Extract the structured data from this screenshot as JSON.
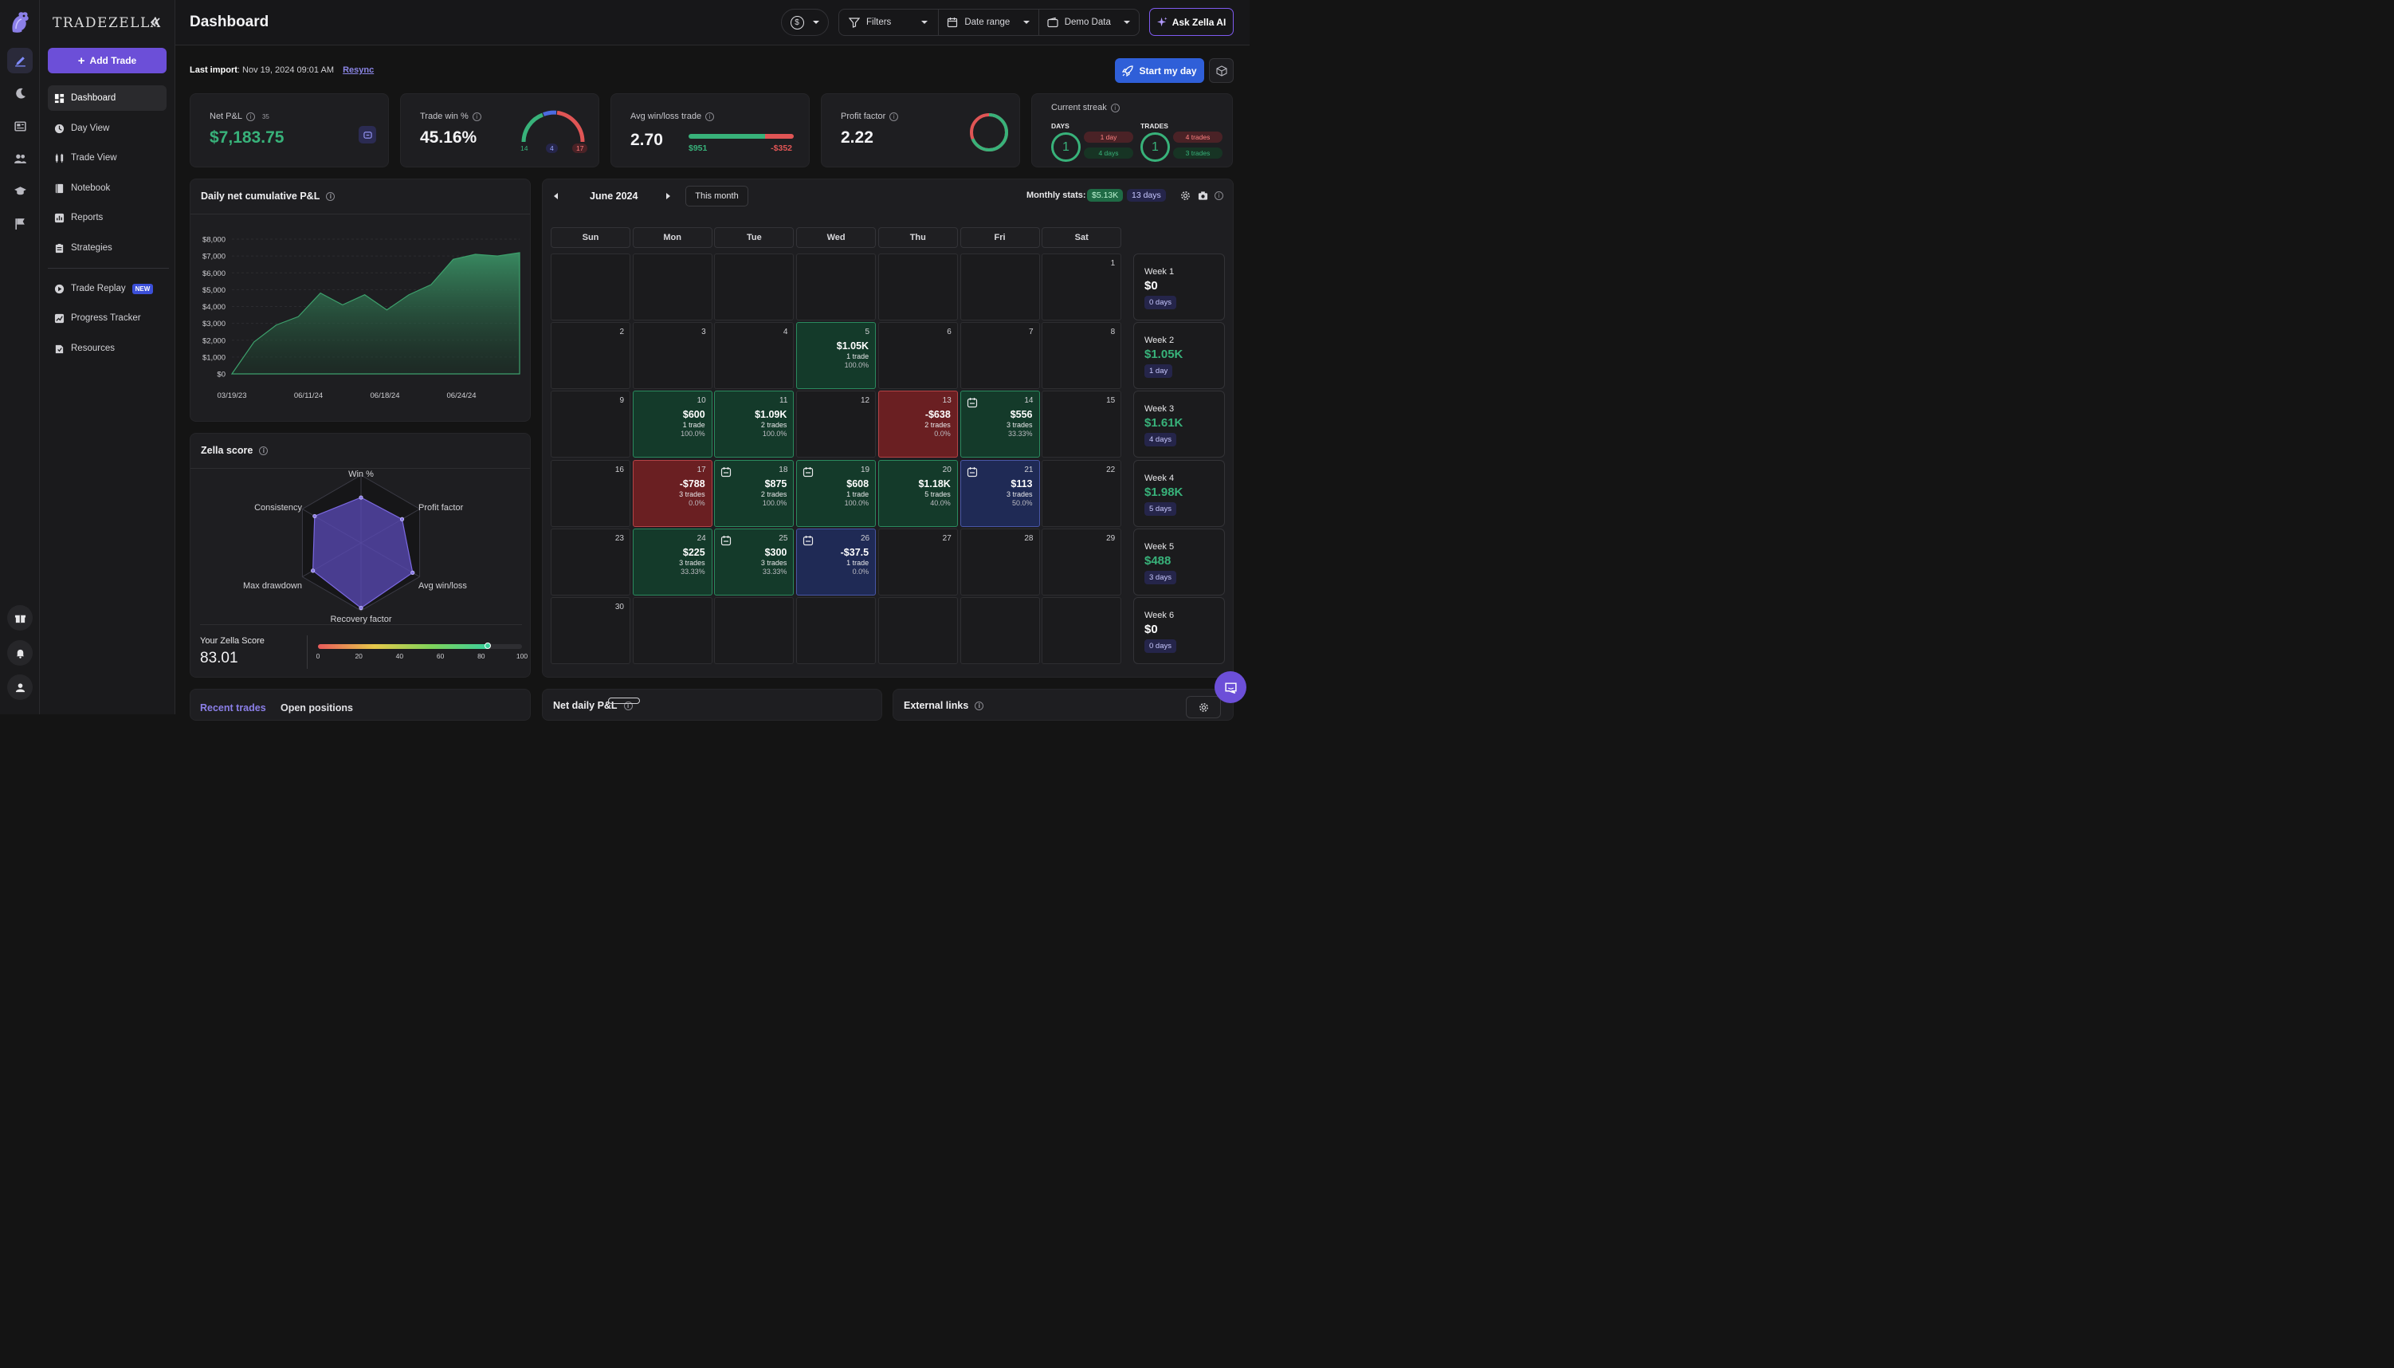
{
  "brand": {
    "name": "TRADEZELLA"
  },
  "sidebar": {
    "add_trade_label": "Add Trade",
    "items": [
      {
        "label": "Dashboard",
        "icon": "dashboard-icon"
      },
      {
        "label": "Day View",
        "icon": "day-view-icon"
      },
      {
        "label": "Trade View",
        "icon": "trade-view-icon"
      },
      {
        "label": "Notebook",
        "icon": "notebook-icon"
      },
      {
        "label": "Reports",
        "icon": "reports-icon"
      },
      {
        "label": "Strategies",
        "icon": "strategies-icon"
      },
      {
        "label": "Trade Replay",
        "icon": "play-icon",
        "badge": "NEW"
      },
      {
        "label": "Progress Tracker",
        "icon": "progress-icon"
      },
      {
        "label": "Resources",
        "icon": "resources-icon"
      }
    ]
  },
  "header": {
    "title": "Dashboard",
    "currency_symbol": "$",
    "filters_label": "Filters",
    "date_range_label": "Date range",
    "account_label": "Demo Data",
    "ask_ai_label": "Ask Zella AI"
  },
  "subheader": {
    "last_import_label": "Last import",
    "last_import_value": ": Nov 19, 2024 09:01 AM",
    "resync_label": "Resync",
    "start_day_label": "Start my day"
  },
  "stats": {
    "net_pnl": {
      "label": "Net P&L",
      "count": "35",
      "value": "$7,183.75"
    },
    "trade_win": {
      "label": "Trade win %",
      "value": "45.16%",
      "wins": "14",
      "breakeven": "4",
      "losses": "17"
    },
    "avg_win_loss": {
      "label": "Avg win/loss trade",
      "value": "2.70",
      "avg_win": "$951",
      "avg_loss": "-$352"
    },
    "profit_factor": {
      "label": "Profit factor",
      "value": "2.22"
    },
    "streak": {
      "label": "Current streak",
      "days_label": "DAYS",
      "days_value": "1",
      "days_loss": "1 day",
      "days_win": "4 days",
      "trades_label": "TRADES",
      "trades_value": "1",
      "trades_loss": "4 trades",
      "trades_win": "3 trades"
    }
  },
  "cum_pnl": {
    "title": "Daily net cumulative P&L",
    "y_ticks": [
      "$8,000",
      "$7,000",
      "$6,000",
      "$5,000",
      "$4,000",
      "$3,000",
      "$2,000",
      "$1,000",
      "$0"
    ],
    "x_ticks": [
      "03/19/23",
      "06/11/24",
      "06/18/24",
      "06/24/24"
    ]
  },
  "chart_data": {
    "type": "area",
    "ylim": [
      0,
      8000
    ],
    "values": [
      0,
      1900,
      2900,
      3400,
      4800,
      4100,
      4700,
      3800,
      4700,
      5300,
      6800,
      7100,
      7000,
      7200
    ],
    "color": "#3a8f64"
  },
  "zella": {
    "title": "Zella score",
    "axes": [
      "Win %",
      "Profit factor",
      "Avg win/loss",
      "Recovery factor",
      "Max drawdown",
      "Consistency"
    ],
    "score_label": "Your Zella Score",
    "score_value": "83.01",
    "scale_ticks": [
      "0",
      "20",
      "40",
      "60",
      "80",
      "100"
    ],
    "score_pct": 83.01
  },
  "calendar": {
    "month": "June 2024",
    "this_month_label": "This month",
    "monthly_stats_label": "Monthly stats:",
    "monthly_pnl": "$5.13K",
    "monthly_days": "13 days",
    "weekdays": [
      "Sun",
      "Mon",
      "Tue",
      "Wed",
      "Thu",
      "Fri",
      "Sat"
    ],
    "days": [
      {
        "d": "1",
        "row": 0,
        "col": 6
      },
      {
        "d": "2",
        "row": 1,
        "col": 0
      },
      {
        "d": "3",
        "row": 1,
        "col": 1
      },
      {
        "d": "4",
        "row": 1,
        "col": 2
      },
      {
        "d": "5",
        "row": 1,
        "col": 3,
        "pnl": "$1.05K",
        "trades": "1 trade",
        "wr": "100.0%",
        "tone": "g"
      },
      {
        "d": "6",
        "row": 1,
        "col": 4
      },
      {
        "d": "7",
        "row": 1,
        "col": 5
      },
      {
        "d": "8",
        "row": 1,
        "col": 6
      },
      {
        "d": "9",
        "row": 2,
        "col": 0
      },
      {
        "d": "10",
        "row": 2,
        "col": 1,
        "pnl": "$600",
        "trades": "1 trade",
        "wr": "100.0%",
        "tone": "g"
      },
      {
        "d": "11",
        "row": 2,
        "col": 2,
        "pnl": "$1.09K",
        "trades": "2 trades",
        "wr": "100.0%",
        "tone": "g"
      },
      {
        "d": "12",
        "row": 2,
        "col": 3
      },
      {
        "d": "13",
        "row": 2,
        "col": 4,
        "pnl": "-$638",
        "trades": "2 trades",
        "wr": "0.0%",
        "tone": "r"
      },
      {
        "d": "14",
        "row": 2,
        "col": 5,
        "pnl": "$556",
        "trades": "3 trades",
        "wr": "33.33%",
        "tone": "g",
        "note": true
      },
      {
        "d": "15",
        "row": 2,
        "col": 6
      },
      {
        "d": "16",
        "row": 3,
        "col": 0
      },
      {
        "d": "17",
        "row": 3,
        "col": 1,
        "pnl": "-$788",
        "trades": "3 trades",
        "wr": "0.0%",
        "tone": "r"
      },
      {
        "d": "18",
        "row": 3,
        "col": 2,
        "pnl": "$875",
        "trades": "2 trades",
        "wr": "100.0%",
        "tone": "g",
        "note": true
      },
      {
        "d": "19",
        "row": 3,
        "col": 3,
        "pnl": "$608",
        "trades": "1 trade",
        "wr": "100.0%",
        "tone": "g",
        "note": true
      },
      {
        "d": "20",
        "row": 3,
        "col": 4,
        "pnl": "$1.18K",
        "trades": "5 trades",
        "wr": "40.0%",
        "tone": "g"
      },
      {
        "d": "21",
        "row": 3,
        "col": 5,
        "pnl": "$113",
        "trades": "3 trades",
        "wr": "50.0%",
        "tone": "b",
        "note": true
      },
      {
        "d": "22",
        "row": 3,
        "col": 6
      },
      {
        "d": "23",
        "row": 4,
        "col": 0
      },
      {
        "d": "24",
        "row": 4,
        "col": 1,
        "pnl": "$225",
        "trades": "3 trades",
        "wr": "33.33%",
        "tone": "g"
      },
      {
        "d": "25",
        "row": 4,
        "col": 2,
        "pnl": "$300",
        "trades": "3 trades",
        "wr": "33.33%",
        "tone": "g",
        "note": true
      },
      {
        "d": "26",
        "row": 4,
        "col": 3,
        "pnl": "-$37.5",
        "trades": "1 trade",
        "wr": "0.0%",
        "tone": "b",
        "note": true
      },
      {
        "d": "27",
        "row": 4,
        "col": 4
      },
      {
        "d": "28",
        "row": 4,
        "col": 5
      },
      {
        "d": "29",
        "row": 4,
        "col": 6
      },
      {
        "d": "30",
        "row": 5,
        "col": 0
      }
    ],
    "weeks": [
      {
        "label": "Week 1",
        "value": "$0",
        "days": "0 days",
        "tone": "n"
      },
      {
        "label": "Week 2",
        "value": "$1.05K",
        "days": "1 day",
        "tone": "g"
      },
      {
        "label": "Week 3",
        "value": "$1.61K",
        "days": "4 days",
        "tone": "g"
      },
      {
        "label": "Week 4",
        "value": "$1.98K",
        "days": "5 days",
        "tone": "g"
      },
      {
        "label": "Week 5",
        "value": "$488",
        "days": "3 days",
        "tone": "g"
      },
      {
        "label": "Week 6",
        "value": "$0",
        "days": "0 days",
        "tone": "n"
      }
    ]
  },
  "bottom": {
    "tabs": [
      "Recent trades",
      "Open positions"
    ],
    "net_daily_title": "Net daily P&L",
    "external_links_title": "External links"
  },
  "colors": {
    "accent": "#6c4fd8",
    "profit": "#38b27a",
    "loss": "#e05555",
    "primary_button": "#2f5fd8"
  }
}
